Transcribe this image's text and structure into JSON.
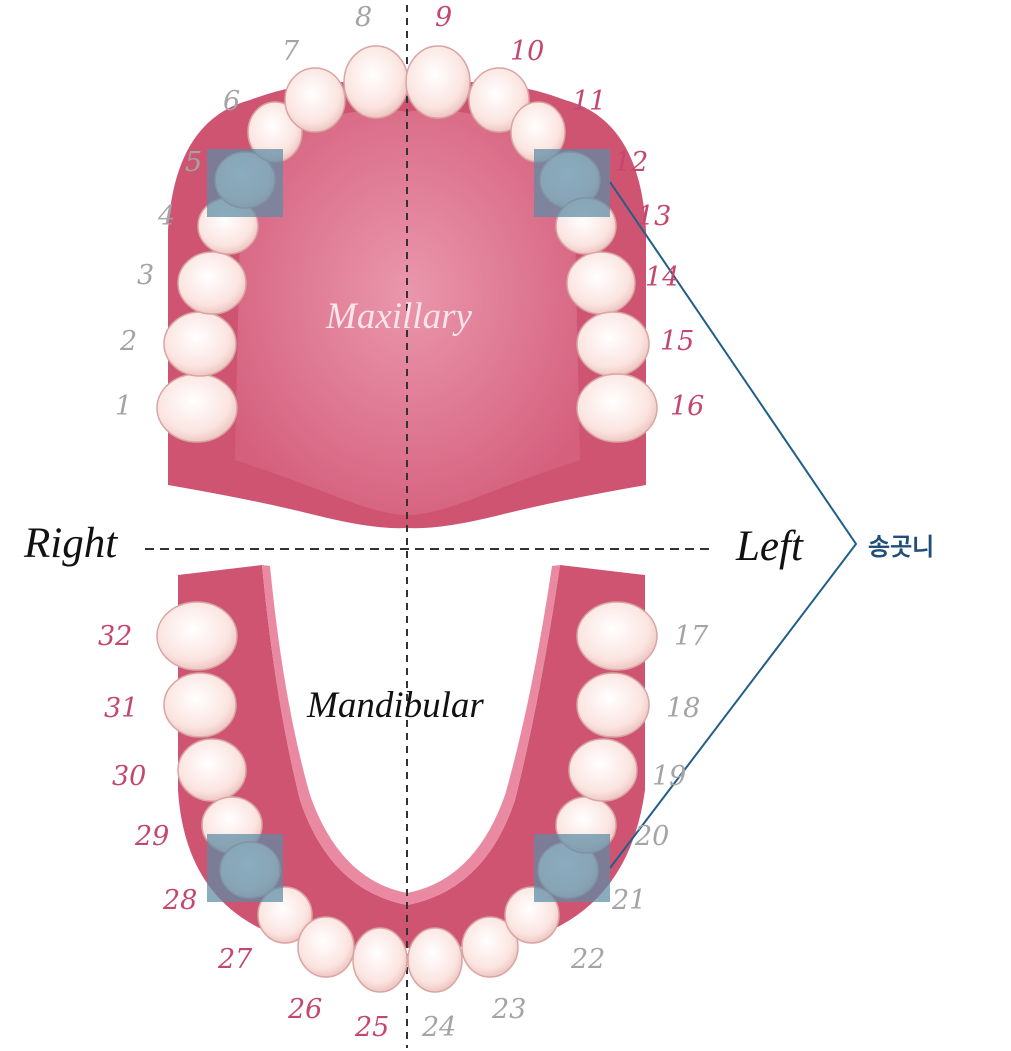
{
  "labels": {
    "maxillary": "Maxillary",
    "mandibular": "Mandibular",
    "right": "Right",
    "left": "Left",
    "callout": "송곳니"
  },
  "teeth": {
    "t1": "1",
    "t2": "2",
    "t3": "3",
    "t4": "4",
    "t5": "5",
    "t6": "6",
    "t7": "7",
    "t8": "8",
    "t9": "9",
    "t10": "10",
    "t11": "11",
    "t12": "12",
    "t13": "13",
    "t14": "14",
    "t15": "15",
    "t16": "16",
    "t17": "17",
    "t18": "18",
    "t19": "19",
    "t20": "20",
    "t21": "21",
    "t22": "22",
    "t23": "23",
    "t24": "24",
    "t25": "25",
    "t26": "26",
    "t27": "27",
    "t28": "28",
    "t29": "29",
    "t30": "30",
    "t31": "31",
    "t32": "32"
  },
  "colors": {
    "gum": "#d35a78",
    "palate": "#e27d98",
    "tooth": "#fbe7e4",
    "highlight": "#5c8ca5",
    "callout_line": "#1f5f8a",
    "grey_label": "#a4a4a4",
    "pink_label": "#c4476e"
  }
}
